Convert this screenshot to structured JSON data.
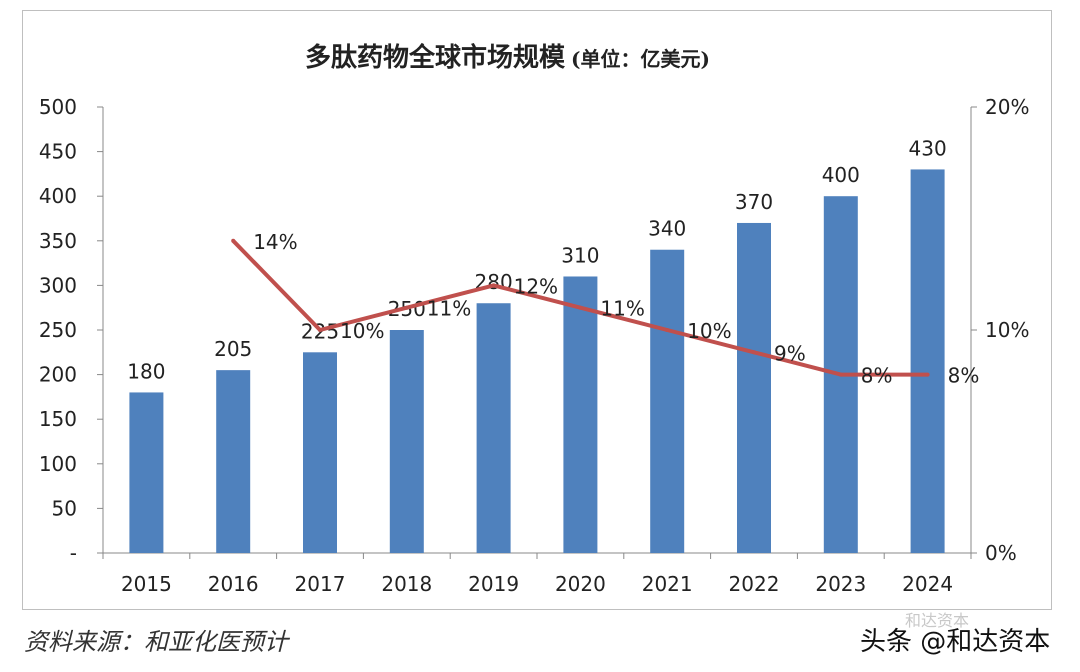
{
  "chart_data": {
    "type": "bar",
    "title": "多肽药物全球市场规模",
    "subtitle": "(单位：亿美元)",
    "categories": [
      "2015",
      "2016",
      "2017",
      "2018",
      "2019",
      "2020",
      "2021",
      "2022",
      "2023",
      "2024"
    ],
    "series": [
      {
        "type": "bar",
        "axis": "left",
        "color": "#4f81bd",
        "values": [
          180,
          205,
          225,
          250,
          280,
          310,
          340,
          370,
          400,
          430
        ],
        "labels": [
          "180",
          "205",
          "225",
          "250",
          "280",
          "310",
          "340",
          "370",
          "400",
          "430"
        ]
      },
      {
        "type": "line",
        "axis": "right",
        "color": "#c0504d",
        "values": [
          null,
          14,
          10,
          11,
          12,
          11,
          10,
          9,
          8,
          8
        ],
        "labels": [
          "",
          "14%",
          "10%",
          "11%",
          "12%",
          "11%",
          "10%",
          "9%",
          "8%",
          "8%"
        ]
      }
    ],
    "ylim": [
      0,
      500
    ],
    "yticks": [
      "-",
      "50",
      "100",
      "150",
      "200",
      "250",
      "300",
      "350",
      "400",
      "450",
      "500"
    ],
    "y2lim": [
      0,
      20
    ],
    "y2ticks": [
      "0%",
      "10%",
      "20%"
    ],
    "grid": false,
    "legend": "none"
  },
  "source": "资料来源：和亚化医预计",
  "watermark": "头条 @和达资本",
  "watermark_faint": "和达资本"
}
